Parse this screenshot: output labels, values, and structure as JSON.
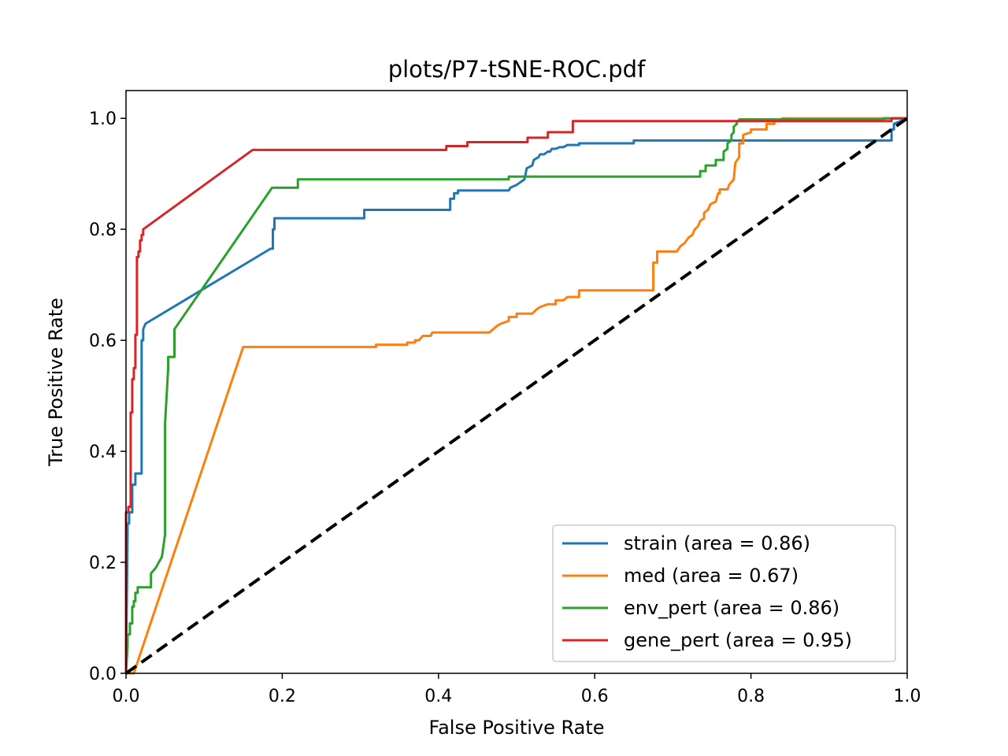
{
  "chart_data": {
    "type": "line",
    "title": "plots/P7-tSNE-ROC.pdf",
    "xlabel": "False Positive Rate",
    "ylabel": "True Positive Rate",
    "xlim": [
      0.0,
      1.0
    ],
    "ylim": [
      0.0,
      1.05
    ],
    "xticks": [
      "0.0",
      "0.2",
      "0.4",
      "0.6",
      "0.8",
      "1.0"
    ],
    "yticks": [
      "0.0",
      "0.2",
      "0.4",
      "0.6",
      "0.8",
      "1.0"
    ],
    "grid": false,
    "legend_position": "lower-right",
    "series": [
      {
        "name": "strain (area = 0.86)",
        "color": "#1f77b4",
        "x": [
          0.0,
          0.002,
          0.002,
          0.004,
          0.004,
          0.008,
          0.008,
          0.012,
          0.012,
          0.02,
          0.02,
          0.022,
          0.022,
          0.025,
          0.185,
          0.188,
          0.188,
          0.19,
          0.19,
          0.305,
          0.305,
          0.415,
          0.415,
          0.42,
          0.42,
          0.425,
          0.425,
          0.49,
          0.492,
          0.5,
          0.505,
          0.51,
          0.513,
          0.52,
          0.522,
          0.528,
          0.53,
          0.535,
          0.54,
          0.543,
          0.545,
          0.55,
          0.555,
          0.56,
          0.565,
          0.58,
          0.58,
          0.65,
          0.65,
          0.98,
          0.98,
          0.983,
          0.983,
          1.0
        ],
        "y": [
          0.0,
          0.25,
          0.27,
          0.27,
          0.29,
          0.29,
          0.34,
          0.34,
          0.36,
          0.36,
          0.6,
          0.6,
          0.62,
          0.63,
          0.765,
          0.765,
          0.8,
          0.8,
          0.82,
          0.82,
          0.835,
          0.835,
          0.855,
          0.855,
          0.865,
          0.865,
          0.87,
          0.87,
          0.875,
          0.88,
          0.885,
          0.89,
          0.91,
          0.915,
          0.925,
          0.93,
          0.935,
          0.935,
          0.94,
          0.94,
          0.945,
          0.945,
          0.948,
          0.948,
          0.952,
          0.952,
          0.955,
          0.955,
          0.96,
          0.96,
          0.98,
          0.98,
          0.99,
          1.0
        ]
      },
      {
        "name": "med (area = 0.67)",
        "color": "#ff7f0e",
        "x": [
          0.0,
          0.01,
          0.15,
          0.32,
          0.32,
          0.36,
          0.36,
          0.37,
          0.37,
          0.375,
          0.38,
          0.39,
          0.392,
          0.465,
          0.47,
          0.475,
          0.48,
          0.49,
          0.49,
          0.5,
          0.5,
          0.52,
          0.525,
          0.53,
          0.54,
          0.55,
          0.55,
          0.56,
          0.565,
          0.58,
          0.58,
          0.675,
          0.675,
          0.68,
          0.68,
          0.705,
          0.71,
          0.715,
          0.72,
          0.725,
          0.728,
          0.732,
          0.735,
          0.74,
          0.74,
          0.745,
          0.748,
          0.755,
          0.758,
          0.76,
          0.76,
          0.77,
          0.772,
          0.778,
          0.78,
          0.785,
          0.785,
          0.79,
          0.79,
          0.8,
          0.8,
          0.82,
          0.82,
          0.83,
          0.83,
          0.84,
          0.84,
          0.98,
          0.98,
          1.0
        ],
        "y": [
          0.0,
          0.0,
          0.588,
          0.588,
          0.592,
          0.592,
          0.596,
          0.596,
          0.6,
          0.6,
          0.608,
          0.608,
          0.614,
          0.614,
          0.62,
          0.626,
          0.63,
          0.635,
          0.642,
          0.642,
          0.648,
          0.648,
          0.655,
          0.66,
          0.665,
          0.665,
          0.672,
          0.672,
          0.678,
          0.678,
          0.69,
          0.69,
          0.74,
          0.74,
          0.76,
          0.76,
          0.77,
          0.775,
          0.785,
          0.79,
          0.8,
          0.805,
          0.815,
          0.82,
          0.83,
          0.835,
          0.845,
          0.85,
          0.865,
          0.865,
          0.872,
          0.872,
          0.88,
          0.89,
          0.92,
          0.93,
          0.955,
          0.955,
          0.97,
          0.975,
          0.98,
          0.98,
          0.99,
          0.99,
          0.995,
          0.995,
          1.0,
          1.0,
          1.0,
          1.0
        ]
      },
      {
        "name": "env_pert (area = 0.86)",
        "color": "#2ca02c",
        "x": [
          0.0,
          0.002,
          0.002,
          0.005,
          0.005,
          0.008,
          0.008,
          0.01,
          0.01,
          0.012,
          0.012,
          0.015,
          0.015,
          0.018,
          0.018,
          0.032,
          0.032,
          0.038,
          0.042,
          0.046,
          0.048,
          0.05,
          0.05,
          0.05,
          0.052,
          0.054,
          0.054,
          0.062,
          0.062,
          0.187,
          0.22,
          0.22,
          0.49,
          0.49,
          0.735,
          0.735,
          0.742,
          0.742,
          0.755,
          0.755,
          0.765,
          0.765,
          0.77,
          0.77,
          0.775,
          0.775,
          0.778,
          0.778,
          0.782,
          0.782,
          0.785,
          0.785,
          0.97,
          0.97,
          1.0
        ],
        "y": [
          0.0,
          0.05,
          0.07,
          0.07,
          0.09,
          0.09,
          0.12,
          0.12,
          0.13,
          0.13,
          0.145,
          0.145,
          0.155,
          0.155,
          0.155,
          0.155,
          0.18,
          0.19,
          0.2,
          0.21,
          0.23,
          0.25,
          0.4,
          0.45,
          0.5,
          0.55,
          0.57,
          0.57,
          0.62,
          0.875,
          0.875,
          0.89,
          0.89,
          0.895,
          0.895,
          0.905,
          0.905,
          0.915,
          0.915,
          0.925,
          0.925,
          0.94,
          0.945,
          0.955,
          0.96,
          0.97,
          0.975,
          0.985,
          0.99,
          0.995,
          0.995,
          0.998,
          0.998,
          1.0,
          1.0
        ]
      },
      {
        "name": "gene_pert (area = 0.95)",
        "color": "#d62728",
        "x": [
          0.0,
          0.0,
          0.003,
          0.003,
          0.006,
          0.006,
          0.008,
          0.008,
          0.01,
          0.01,
          0.012,
          0.012,
          0.014,
          0.014,
          0.016,
          0.016,
          0.018,
          0.018,
          0.02,
          0.02,
          0.022,
          0.022,
          0.162,
          0.41,
          0.41,
          0.437,
          0.437,
          0.514,
          0.514,
          0.54,
          0.54,
          0.572,
          0.572,
          0.62,
          0.62,
          0.98,
          0.98,
          1.0
        ],
        "y": [
          0.0,
          0.29,
          0.29,
          0.3,
          0.3,
          0.47,
          0.47,
          0.53,
          0.53,
          0.55,
          0.55,
          0.61,
          0.61,
          0.75,
          0.75,
          0.76,
          0.76,
          0.78,
          0.78,
          0.79,
          0.79,
          0.8,
          0.943,
          0.943,
          0.95,
          0.95,
          0.957,
          0.957,
          0.965,
          0.965,
          0.975,
          0.975,
          0.995,
          0.995,
          0.995,
          0.995,
          1.0,
          1.0
        ]
      },
      {
        "name": "",
        "color": "#000000",
        "dashed": true,
        "x": [
          0.0,
          1.0
        ],
        "y": [
          0.0,
          1.0
        ]
      }
    ]
  }
}
